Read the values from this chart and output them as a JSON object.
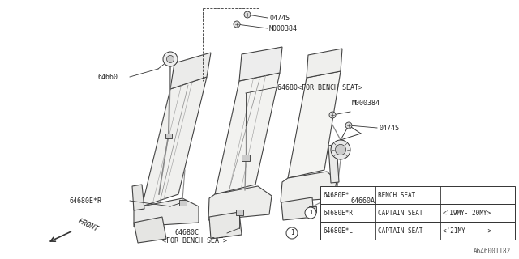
{
  "bg_color": "#ffffff",
  "line_color": "#333333",
  "label_color": "#222222",
  "diagram_number": "A646001182",
  "font_size": 6.0,
  "table": {
    "rows": [
      {
        "col1": "64680E*L",
        "col2": "BENCH SEAT",
        "col3": ""
      },
      {
        "col1": "64680E*R",
        "col2": "CAPTAIN SEAT",
        "col3": "<'19MY-'20MY>",
        "circled": true
      },
      {
        "col1": "64680E*L",
        "col2": "CAPTAIN SEAT",
        "col3": "<'21MY-     >"
      }
    ]
  }
}
